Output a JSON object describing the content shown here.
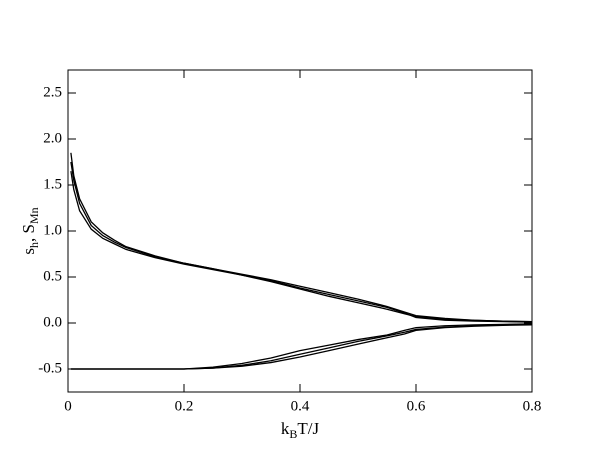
{
  "chart_data": {
    "type": "line",
    "xlabel": [
      "k",
      "B",
      "T/J"
    ],
    "ylabel": [
      "s",
      "h",
      ", S",
      "Mn"
    ],
    "x": [
      0.005,
      0.01,
      0.02,
      0.04,
      0.06,
      0.08,
      0.1,
      0.15,
      0.2,
      0.25,
      0.3,
      0.35,
      0.4,
      0.45,
      0.5,
      0.55,
      0.58,
      0.6,
      0.65,
      0.7,
      0.75,
      0.8
    ],
    "series": [
      {
        "color": "#000000",
        "values": [
          1.85,
          1.6,
          1.35,
          1.1,
          0.98,
          0.9,
          0.83,
          0.73,
          0.65,
          0.59,
          0.52,
          0.45,
          0.37,
          0.29,
          0.22,
          0.15,
          0.1,
          0.07,
          0.04,
          0.03,
          0.02,
          0.015
        ]
      },
      {
        "color": "#000000",
        "values": [
          1.75,
          1.55,
          1.3,
          1.06,
          0.95,
          0.88,
          0.82,
          0.72,
          0.65,
          0.59,
          0.53,
          0.47,
          0.4,
          0.33,
          0.26,
          0.18,
          0.12,
          0.08,
          0.05,
          0.03,
          0.02,
          0.015
        ]
      },
      {
        "color": "#000000",
        "values": [
          1.65,
          1.45,
          1.22,
          1.02,
          0.92,
          0.86,
          0.8,
          0.71,
          0.64,
          0.58,
          0.52,
          0.46,
          0.38,
          0.31,
          0.24,
          0.17,
          0.11,
          0.06,
          0.03,
          0.02,
          0.015,
          0.01
        ]
      },
      {
        "color": "#000000",
        "values": [
          -0.5,
          -0.5,
          -0.5,
          -0.5,
          -0.5,
          -0.5,
          -0.5,
          -0.5,
          -0.5,
          -0.49,
          -0.46,
          -0.41,
          -0.34,
          -0.27,
          -0.2,
          -0.14,
          -0.1,
          -0.07,
          -0.045,
          -0.03,
          -0.02,
          -0.015
        ]
      },
      {
        "color": "#000000",
        "values": [
          -0.5,
          -0.5,
          -0.5,
          -0.5,
          -0.5,
          -0.5,
          -0.5,
          -0.5,
          -0.5,
          -0.48,
          -0.44,
          -0.38,
          -0.3,
          -0.24,
          -0.18,
          -0.13,
          -0.08,
          -0.05,
          -0.03,
          -0.02,
          -0.015,
          -0.01
        ]
      },
      {
        "color": "#000000",
        "values": [
          -0.5,
          -0.5,
          -0.5,
          -0.5,
          -0.5,
          -0.5,
          -0.5,
          -0.5,
          -0.5,
          -0.49,
          -0.47,
          -0.43,
          -0.37,
          -0.3,
          -0.23,
          -0.16,
          -0.12,
          -0.08,
          -0.05,
          -0.035,
          -0.025,
          -0.02
        ]
      }
    ],
    "xlim": [
      0,
      0.8
    ],
    "xticks": [
      0,
      0.2,
      0.4,
      0.6,
      0.8
    ],
    "ylim": [
      -0.75,
      2.75
    ],
    "yticks": [
      {
        "value": -0.5,
        "label": "-0.5"
      },
      {
        "value": 0,
        "label": "0.0"
      },
      {
        "value": 0.5,
        "label": "0.5"
      },
      {
        "value": 1,
        "label": "1.0"
      },
      {
        "value": 1.5,
        "label": "1.5"
      },
      {
        "value": 2,
        "label": "2.0"
      },
      {
        "value": 2.5,
        "label": "2.5"
      }
    ],
    "grid": false
  }
}
